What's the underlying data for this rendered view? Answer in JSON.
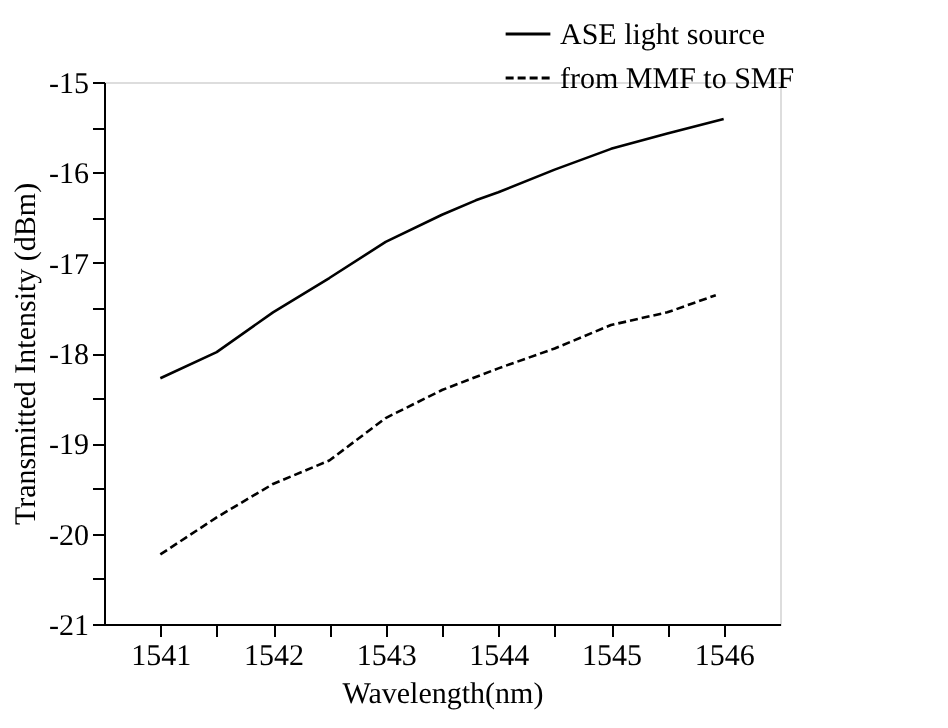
{
  "chart_data": {
    "type": "line",
    "xlabel": "Wavelength(nm)",
    "ylabel": "Transmitted Intensity (dBm)",
    "xlim": [
      1540.5,
      1546.5
    ],
    "ylim": [
      -21,
      -15
    ],
    "xticks": [
      1541,
      {
        "value": 1541.5,
        "label": null
      },
      1542,
      {
        "value": 1542.5,
        "label": null
      },
      1543,
      {
        "value": 1543.5,
        "label": null
      },
      1544,
      {
        "value": 1544.5,
        "label": null
      },
      1545,
      {
        "value": 1545.5,
        "label": null
      },
      1546
    ],
    "yticks": [
      -21,
      {
        "value": -20.5,
        "label": null
      },
      -20,
      {
        "value": -19.5,
        "label": null
      },
      -19,
      {
        "value": -18.5,
        "label": null
      },
      -18,
      {
        "value": -17.5,
        "label": null
      },
      -17,
      {
        "value": -16.5,
        "label": null
      },
      -16,
      {
        "value": -15.5,
        "label": null
      },
      -15
    ],
    "grid": false,
    "legend": "top right",
    "marker": "none",
    "series": [
      {
        "name": "ASE light source",
        "color": "#000000",
        "line_style": "solid",
        "x": [
          1541,
          1541.5,
          1542,
          1542.5,
          1543,
          1543.5,
          1543.8,
          1544,
          1544.5,
          1545,
          1545.5,
          1546
        ],
        "values": [
          -18.28,
          -17.99,
          -17.55,
          -17.17,
          -16.77,
          -16.47,
          -16.31,
          -16.22,
          -15.97,
          -15.74,
          -15.57,
          -15.41
        ]
      },
      {
        "name": "from MMF to SMF",
        "color": "#000000",
        "line_style": "dashed",
        "x": [
          1541,
          1541.5,
          1542,
          1542.5,
          1543,
          1543.5,
          1544,
          1544.5,
          1545,
          1545.5,
          1545.93
        ],
        "values": [
          -20.23,
          -19.82,
          -19.45,
          -19.19,
          -18.72,
          -18.41,
          -18.17,
          -17.95,
          -17.69,
          -17.55,
          -17.36
        ]
      }
    ]
  }
}
